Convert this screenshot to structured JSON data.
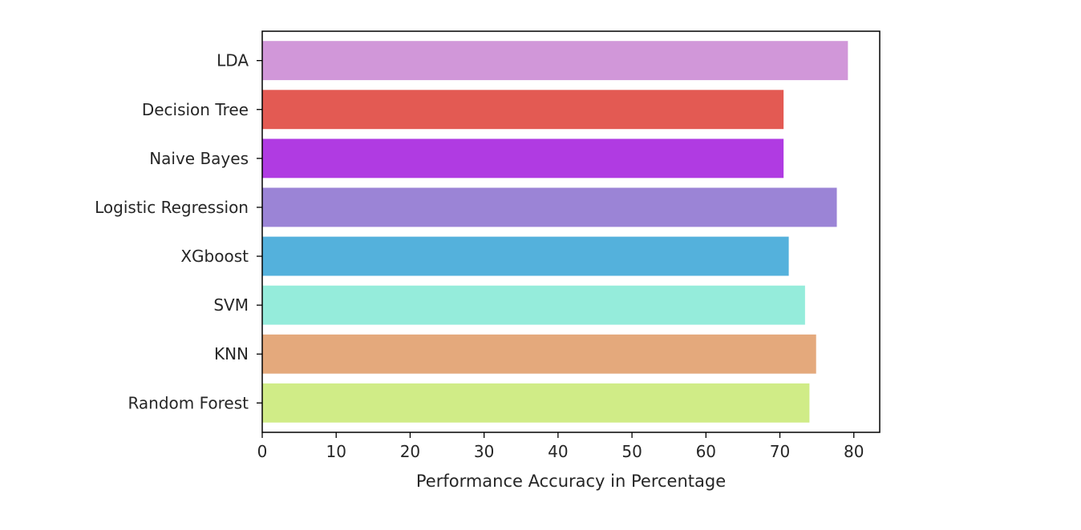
{
  "chart_data": {
    "type": "bar",
    "orientation": "horizontal",
    "title": "",
    "xlabel": "Performance Accuracy in Percentage",
    "ylabel": "",
    "categories": [
      "Random Forest",
      "KNN",
      "SVM",
      "XGboost",
      "Logistic Regression",
      "Naive Bayes",
      "Decision Tree",
      "LDA"
    ],
    "values": [
      74.0,
      74.9,
      73.4,
      71.2,
      77.7,
      70.5,
      70.5,
      79.2
    ],
    "colors": [
      "#d0ec87",
      "#e4a97c",
      "#95ecdb",
      "#54b1dc",
      "#9b84d6",
      "#b03be2",
      "#e35a53",
      "#d197d9"
    ],
    "xlim": [
      0,
      83.5
    ],
    "xticks": [
      0,
      10,
      20,
      30,
      40,
      50,
      60,
      70,
      80
    ],
    "grid": false,
    "legend": false
  }
}
